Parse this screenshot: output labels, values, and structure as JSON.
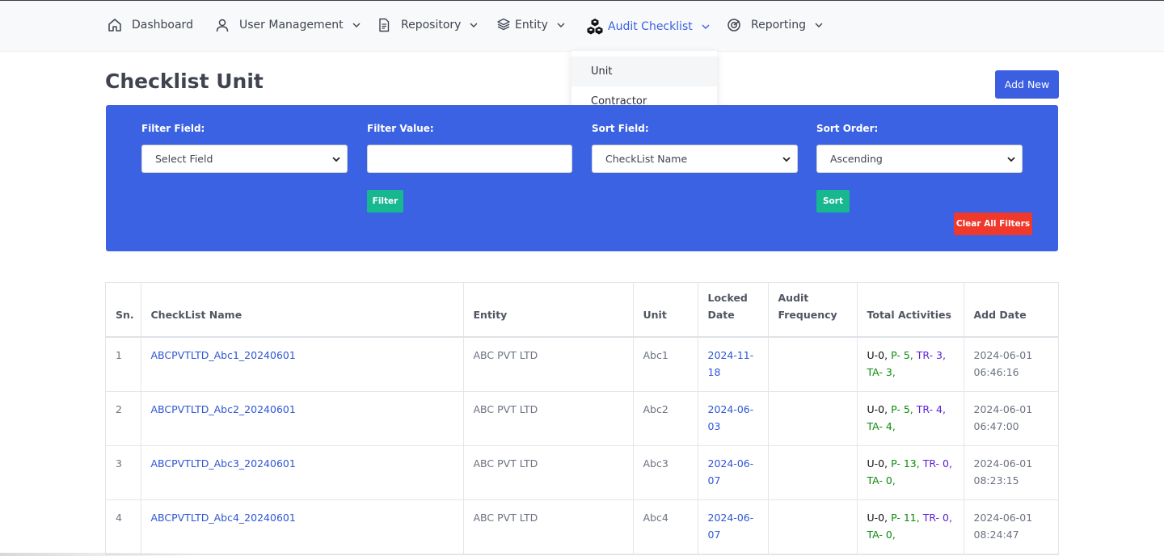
{
  "nav": {
    "items": [
      {
        "label": "Dashboard",
        "icon": "home-icon"
      },
      {
        "label": "User Management",
        "icon": "user-icon"
      },
      {
        "label": "Repository",
        "icon": "document-icon"
      },
      {
        "label": "Entity",
        "icon": "layers-icon"
      },
      {
        "label": "Audit Checklist",
        "icon": "cubes-icon",
        "active": true
      },
      {
        "label": "Reporting",
        "icon": "target-icon"
      }
    ],
    "dropdown": [
      "Unit",
      "Contractor"
    ]
  },
  "page": {
    "title": "Checklist Unit",
    "add_button": "Add New"
  },
  "filters": {
    "filter_field_label": "Filter Field:",
    "filter_field_value": "Select Field",
    "filter_value_label": "Filter Value:",
    "filter_value": "",
    "sort_field_label": "Sort Field:",
    "sort_field_value": "CheckList Name",
    "sort_order_label": "Sort Order:",
    "sort_order_value": "Ascending",
    "filter_button": "Filter",
    "sort_button": "Sort",
    "clear_button": "Clear All Filters"
  },
  "table": {
    "headers": [
      "Sn.",
      "CheckList Name",
      "Entity",
      "Unit",
      "Locked Date",
      "Audit Frequency",
      "Total Activities",
      "Add Date"
    ],
    "rows": [
      {
        "sn": "1",
        "name": "ABCPVTLTD_Abc1_20240601",
        "entity": "ABC PVT LTD",
        "unit": "Abc1",
        "locked": "2024-11-18",
        "freq": "",
        "u": "U-0,",
        "p": "P- 5,",
        "tr": "TR- 3,",
        "ta": "TA- 3,",
        "add_date": "2024-06-01 06:46:16"
      },
      {
        "sn": "2",
        "name": "ABCPVTLTD_Abc2_20240601",
        "entity": "ABC PVT LTD",
        "unit": "Abc2",
        "locked": "2024-06-03",
        "freq": "",
        "u": "U-0,",
        "p": "P- 5,",
        "tr": "TR- 4,",
        "ta": "TA- 4,",
        "add_date": "2024-06-01 06:47:00"
      },
      {
        "sn": "3",
        "name": "ABCPVTLTD_Abc3_20240601",
        "entity": "ABC PVT LTD",
        "unit": "Abc3",
        "locked": "2024-06-07",
        "freq": "",
        "u": "U-0,",
        "p": "P- 13,",
        "tr": "TR- 0,",
        "ta": "TA- 0,",
        "add_date": "2024-06-01 08:23:15"
      },
      {
        "sn": "4",
        "name": "ABCPVTLTD_Abc4_20240601",
        "entity": "ABC PVT LTD",
        "unit": "Abc4",
        "locked": "2024-06-07",
        "freq": "",
        "u": "U-0,",
        "p": "P- 11,",
        "tr": "TR- 0,",
        "ta": "TA- 0,",
        "add_date": "2024-06-01 08:24:47"
      }
    ]
  },
  "colors": {
    "accent": "#3b5fe0",
    "panel": "#3b62e2",
    "success": "#17b890",
    "danger": "#f0382b"
  }
}
